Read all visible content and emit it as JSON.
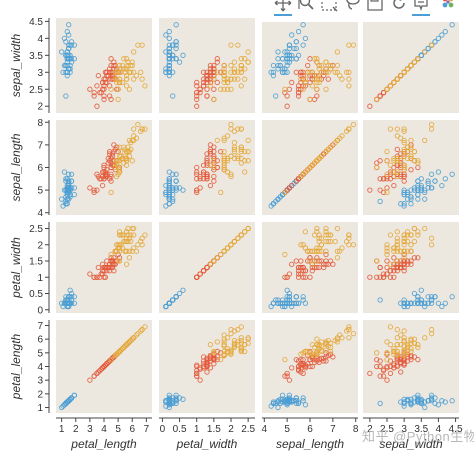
{
  "toolbar": {
    "tools": [
      {
        "icon": "pan-icon"
      },
      {
        "icon": "wheel-zoom-icon"
      },
      {
        "icon": "box-select-icon"
      },
      {
        "icon": "lasso-select-icon"
      },
      {
        "icon": "save-icon"
      },
      {
        "icon": "reset-icon"
      },
      {
        "icon": "hover-icon"
      },
      {
        "icon": "bokeh-logo-icon"
      }
    ]
  },
  "watermark": "知乎 @Python生物人",
  "colors": {
    "panel_bg": "#ece7df",
    "setosa": "#4b9fd4",
    "versicolor": "#e35a3b",
    "virginica": "#e4a93b"
  },
  "chart_data": {
    "type": "scatter",
    "subtype": "scatter-matrix",
    "grid": false,
    "legend": "none",
    "variables": {
      "sepal_width": {
        "label": "sepal_width",
        "range": [
          1.8,
          4.6
        ],
        "ticks": [
          "2",
          "2.5",
          "3",
          "3.5",
          "4",
          "4.5"
        ]
      },
      "sepal_length": {
        "label": "sepal_length",
        "range": [
          3.9,
          8.1
        ],
        "ticks": [
          "4",
          "5",
          "6",
          "7",
          "8"
        ]
      },
      "petal_width": {
        "label": "petal_width",
        "range": [
          -0.1,
          2.7
        ],
        "ticks": [
          "0",
          "0.5",
          "1",
          "1.5",
          "2",
          "2.5"
        ]
      },
      "petal_length": {
        "label": "petal_length",
        "range": [
          0.6,
          7.4
        ],
        "ticks": [
          "1",
          "2",
          "3",
          "4",
          "5",
          "6",
          "7"
        ]
      }
    },
    "rows": [
      "sepal_width",
      "sepal_length",
      "petal_width",
      "petal_length"
    ],
    "cols": [
      "petal_length",
      "petal_width",
      "sepal_length",
      "sepal_width"
    ],
    "series": [
      {
        "color": "setosa",
        "points": [
          [
            5.1,
            3.5,
            1.4,
            0.2
          ],
          [
            4.9,
            3.0,
            1.4,
            0.2
          ],
          [
            4.7,
            3.2,
            1.3,
            0.2
          ],
          [
            4.6,
            3.1,
            1.5,
            0.2
          ],
          [
            5.0,
            3.6,
            1.4,
            0.2
          ],
          [
            5.4,
            3.9,
            1.7,
            0.4
          ],
          [
            4.6,
            3.4,
            1.4,
            0.3
          ],
          [
            5.0,
            3.4,
            1.5,
            0.2
          ],
          [
            4.4,
            2.9,
            1.4,
            0.2
          ],
          [
            4.9,
            3.1,
            1.5,
            0.1
          ],
          [
            5.4,
            3.7,
            1.5,
            0.2
          ],
          [
            4.8,
            3.4,
            1.6,
            0.2
          ],
          [
            4.8,
            3.0,
            1.4,
            0.1
          ],
          [
            4.3,
            3.0,
            1.1,
            0.1
          ],
          [
            5.8,
            4.0,
            1.2,
            0.2
          ],
          [
            5.7,
            4.4,
            1.5,
            0.4
          ],
          [
            5.4,
            3.9,
            1.3,
            0.4
          ],
          [
            5.1,
            3.5,
            1.4,
            0.3
          ],
          [
            5.7,
            3.8,
            1.7,
            0.3
          ],
          [
            5.1,
            3.8,
            1.5,
            0.3
          ],
          [
            5.4,
            3.4,
            1.7,
            0.2
          ],
          [
            5.1,
            3.7,
            1.5,
            0.4
          ],
          [
            4.6,
            3.6,
            1.0,
            0.2
          ],
          [
            5.1,
            3.3,
            1.7,
            0.5
          ],
          [
            4.8,
            3.4,
            1.9,
            0.2
          ],
          [
            5.0,
            3.0,
            1.6,
            0.2
          ],
          [
            5.0,
            3.4,
            1.6,
            0.4
          ],
          [
            5.2,
            3.5,
            1.5,
            0.2
          ],
          [
            5.2,
            3.4,
            1.4,
            0.2
          ],
          [
            4.7,
            3.2,
            1.6,
            0.2
          ],
          [
            4.8,
            3.1,
            1.6,
            0.2
          ],
          [
            5.4,
            3.4,
            1.5,
            0.4
          ],
          [
            5.2,
            4.1,
            1.5,
            0.1
          ],
          [
            5.5,
            4.2,
            1.4,
            0.2
          ],
          [
            4.9,
            3.1,
            1.5,
            0.2
          ],
          [
            5.0,
            3.2,
            1.2,
            0.2
          ],
          [
            5.5,
            3.5,
            1.3,
            0.2
          ],
          [
            4.9,
            3.6,
            1.4,
            0.1
          ],
          [
            4.4,
            3.0,
            1.3,
            0.2
          ],
          [
            5.1,
            3.4,
            1.5,
            0.2
          ],
          [
            5.0,
            3.5,
            1.3,
            0.3
          ],
          [
            4.5,
            2.3,
            1.3,
            0.3
          ],
          [
            4.4,
            3.2,
            1.3,
            0.2
          ],
          [
            5.0,
            3.5,
            1.6,
            0.6
          ],
          [
            5.1,
            3.8,
            1.9,
            0.4
          ],
          [
            4.8,
            3.0,
            1.4,
            0.3
          ],
          [
            5.1,
            3.8,
            1.6,
            0.2
          ],
          [
            4.6,
            3.2,
            1.4,
            0.2
          ],
          [
            5.3,
            3.7,
            1.5,
            0.2
          ],
          [
            5.0,
            3.3,
            1.4,
            0.2
          ]
        ]
      },
      {
        "color": "versicolor",
        "points": [
          [
            7.0,
            3.2,
            4.7,
            1.4
          ],
          [
            6.4,
            3.2,
            4.5,
            1.5
          ],
          [
            6.9,
            3.1,
            4.9,
            1.5
          ],
          [
            5.5,
            2.3,
            4.0,
            1.3
          ],
          [
            6.5,
            2.8,
            4.6,
            1.5
          ],
          [
            5.7,
            2.8,
            4.5,
            1.3
          ],
          [
            6.3,
            3.3,
            4.7,
            1.6
          ],
          [
            4.9,
            2.4,
            3.3,
            1.0
          ],
          [
            6.6,
            2.9,
            4.6,
            1.3
          ],
          [
            5.2,
            2.7,
            3.9,
            1.4
          ],
          [
            5.0,
            2.0,
            3.5,
            1.0
          ],
          [
            5.9,
            3.0,
            4.2,
            1.5
          ],
          [
            6.0,
            2.2,
            4.0,
            1.0
          ],
          [
            6.1,
            2.9,
            4.7,
            1.4
          ],
          [
            5.6,
            2.9,
            3.6,
            1.3
          ],
          [
            6.7,
            3.1,
            4.4,
            1.4
          ],
          [
            5.6,
            3.0,
            4.5,
            1.5
          ],
          [
            5.8,
            2.7,
            4.1,
            1.0
          ],
          [
            6.2,
            2.2,
            4.5,
            1.5
          ],
          [
            5.6,
            2.5,
            3.9,
            1.1
          ],
          [
            5.9,
            3.2,
            4.8,
            1.8
          ],
          [
            6.1,
            2.8,
            4.0,
            1.3
          ],
          [
            6.3,
            2.5,
            4.9,
            1.5
          ],
          [
            6.1,
            2.8,
            4.7,
            1.2
          ],
          [
            6.4,
            2.9,
            4.3,
            1.3
          ],
          [
            6.6,
            3.0,
            4.4,
            1.4
          ],
          [
            6.8,
            2.8,
            4.8,
            1.4
          ],
          [
            6.7,
            3.0,
            5.0,
            1.7
          ],
          [
            6.0,
            2.9,
            4.5,
            1.5
          ],
          [
            5.7,
            2.6,
            3.5,
            1.0
          ],
          [
            5.5,
            2.4,
            3.8,
            1.1
          ],
          [
            5.5,
            2.4,
            3.7,
            1.0
          ],
          [
            5.8,
            2.7,
            3.9,
            1.2
          ],
          [
            6.0,
            2.7,
            5.1,
            1.6
          ],
          [
            5.4,
            3.0,
            4.5,
            1.5
          ],
          [
            6.0,
            3.4,
            4.5,
            1.6
          ],
          [
            6.7,
            3.1,
            4.7,
            1.5
          ],
          [
            6.3,
            2.3,
            4.4,
            1.3
          ],
          [
            5.6,
            3.0,
            4.1,
            1.3
          ],
          [
            5.5,
            2.5,
            4.0,
            1.3
          ],
          [
            5.5,
            2.6,
            4.4,
            1.2
          ],
          [
            6.1,
            3.0,
            4.6,
            1.4
          ],
          [
            5.8,
            2.6,
            4.0,
            1.2
          ],
          [
            5.0,
            2.3,
            3.3,
            1.0
          ],
          [
            5.6,
            2.7,
            4.2,
            1.3
          ],
          [
            5.7,
            3.0,
            4.2,
            1.2
          ],
          [
            5.7,
            2.9,
            4.2,
            1.3
          ],
          [
            6.2,
            2.9,
            4.3,
            1.3
          ],
          [
            5.1,
            2.5,
            3.0,
            1.1
          ],
          [
            5.7,
            2.8,
            4.1,
            1.3
          ]
        ]
      },
      {
        "color": "virginica",
        "points": [
          [
            6.3,
            3.3,
            6.0,
            2.5
          ],
          [
            5.8,
            2.7,
            5.1,
            1.9
          ],
          [
            7.1,
            3.0,
            5.9,
            2.1
          ],
          [
            6.3,
            2.9,
            5.6,
            1.8
          ],
          [
            6.5,
            3.0,
            5.8,
            2.2
          ],
          [
            7.6,
            3.0,
            6.6,
            2.1
          ],
          [
            4.9,
            2.5,
            4.5,
            1.7
          ],
          [
            7.3,
            2.9,
            6.3,
            1.8
          ],
          [
            6.7,
            2.5,
            5.8,
            1.8
          ],
          [
            7.2,
            3.6,
            6.1,
            2.5
          ],
          [
            6.5,
            3.2,
            5.1,
            2.0
          ],
          [
            6.4,
            2.7,
            5.3,
            1.9
          ],
          [
            6.8,
            3.0,
            5.5,
            2.1
          ],
          [
            5.7,
            2.5,
            5.0,
            2.0
          ],
          [
            5.8,
            2.8,
            5.1,
            2.4
          ],
          [
            6.4,
            3.2,
            5.3,
            2.3
          ],
          [
            6.5,
            3.0,
            5.5,
            1.8
          ],
          [
            7.7,
            3.8,
            6.7,
            2.2
          ],
          [
            7.7,
            2.6,
            6.9,
            2.3
          ],
          [
            6.0,
            2.2,
            5.0,
            1.5
          ],
          [
            6.9,
            3.2,
            5.7,
            2.3
          ],
          [
            5.6,
            2.8,
            4.9,
            2.0
          ],
          [
            7.7,
            2.8,
            6.7,
            2.0
          ],
          [
            6.3,
            2.7,
            4.9,
            1.8
          ],
          [
            6.7,
            3.3,
            5.7,
            2.1
          ],
          [
            7.2,
            3.2,
            6.0,
            1.8
          ],
          [
            6.2,
            2.8,
            4.8,
            1.8
          ],
          [
            6.1,
            3.0,
            4.9,
            1.8
          ],
          [
            6.4,
            2.8,
            5.6,
            2.1
          ],
          [
            7.2,
            3.0,
            5.8,
            1.6
          ],
          [
            7.4,
            2.8,
            6.1,
            1.9
          ],
          [
            7.9,
            3.8,
            6.4,
            2.0
          ],
          [
            6.4,
            2.8,
            5.6,
            2.2
          ],
          [
            6.3,
            2.8,
            5.1,
            1.5
          ],
          [
            6.1,
            2.6,
            5.6,
            1.4
          ],
          [
            7.7,
            3.0,
            6.1,
            2.3
          ],
          [
            6.3,
            3.4,
            5.6,
            2.4
          ],
          [
            6.4,
            3.1,
            5.5,
            1.8
          ],
          [
            6.0,
            3.0,
            4.8,
            1.8
          ],
          [
            6.9,
            3.1,
            5.4,
            2.1
          ],
          [
            6.7,
            3.1,
            5.6,
            2.4
          ],
          [
            6.9,
            3.1,
            5.1,
            2.3
          ],
          [
            5.8,
            2.7,
            5.1,
            1.9
          ],
          [
            6.8,
            3.2,
            5.9,
            2.3
          ],
          [
            6.7,
            3.3,
            5.7,
            2.5
          ],
          [
            6.7,
            3.0,
            5.2,
            2.3
          ],
          [
            6.3,
            2.5,
            5.0,
            1.9
          ],
          [
            6.5,
            3.0,
            5.2,
            2.0
          ],
          [
            6.2,
            3.4,
            5.4,
            2.3
          ],
          [
            5.9,
            3.0,
            5.1,
            1.8
          ]
        ]
      }
    ]
  }
}
